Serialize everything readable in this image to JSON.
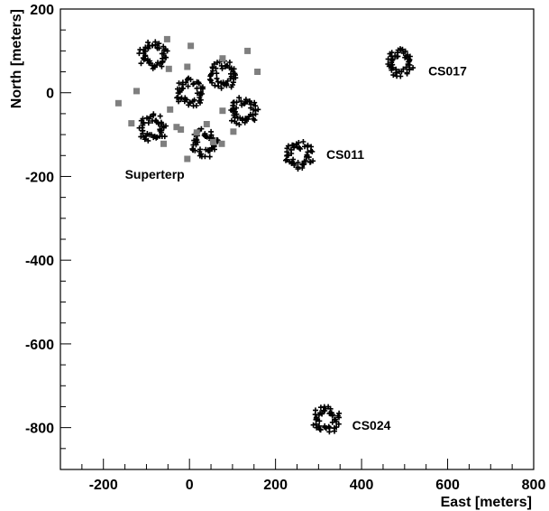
{
  "chart_data": {
    "type": "scatter",
    "title": "",
    "xlabel": "East [meters]",
    "ylabel": "North [meters]",
    "xlim": [
      -300,
      800
    ],
    "ylim": [
      -900,
      200
    ],
    "x_ticks": [
      -200,
      0,
      200,
      400,
      600,
      800
    ],
    "y_ticks": [
      -800,
      -600,
      -400,
      -200,
      0,
      200
    ],
    "x_minor_step": 50,
    "y_minor_step": 50,
    "grid": false,
    "legend": "none",
    "colors": {
      "cross": "#000000",
      "square": "#7f7f7f"
    },
    "station_clusters": [
      {
        "name": "superterp-station-1",
        "x": -85,
        "y": 90,
        "r": 35
      },
      {
        "name": "superterp-station-2",
        "x": 0,
        "y": 0,
        "r": 35
      },
      {
        "name": "superterp-station-3",
        "x": 80,
        "y": 42,
        "r": 35
      },
      {
        "name": "superterp-station-4",
        "x": 125,
        "y": -45,
        "r": 35
      },
      {
        "name": "superterp-station-5",
        "x": -85,
        "y": -85,
        "r": 35
      },
      {
        "name": "superterp-station-6",
        "x": 35,
        "y": -120,
        "r": 35
      },
      {
        "name": "CS011",
        "x": 255,
        "y": -150,
        "r": 35
      },
      {
        "name": "CS017",
        "x": 490,
        "y": 72,
        "r": 35
      },
      {
        "name": "CS024",
        "x": 318,
        "y": -780,
        "r": 35
      }
    ],
    "squares": [
      [
        -52,
        128
      ],
      [
        3,
        112
      ],
      [
        -48,
        57
      ],
      [
        -5,
        62
      ],
      [
        -123,
        4
      ],
      [
        -165,
        -25
      ],
      [
        -135,
        -73
      ],
      [
        -60,
        -122
      ],
      [
        -30,
        -82
      ],
      [
        -45,
        -40
      ],
      [
        -5,
        -158
      ],
      [
        40,
        -75
      ],
      [
        77,
        -43
      ],
      [
        102,
        -93
      ],
      [
        77,
        82
      ],
      [
        135,
        100
      ],
      [
        158,
        50
      ],
      [
        17,
        -95
      ],
      [
        -20,
        -88
      ],
      [
        75,
        -122
      ],
      [
        55,
        -118
      ]
    ],
    "annotations": [
      {
        "text": "Superterp",
        "x": -150,
        "y": -205
      },
      {
        "text": "CS011",
        "x": 318,
        "y": -158
      },
      {
        "text": "CS017",
        "x": 555,
        "y": 42
      },
      {
        "text": "CS024",
        "x": 378,
        "y": -805
      }
    ]
  }
}
